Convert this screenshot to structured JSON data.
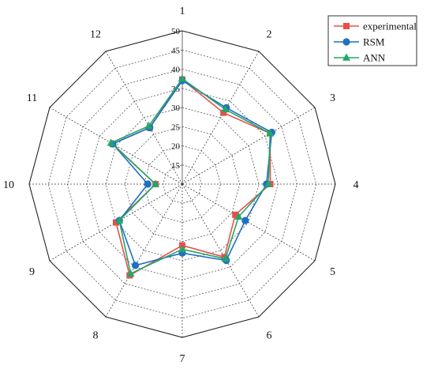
{
  "chart_data": {
    "type": "radar",
    "categories": [
      "1",
      "2",
      "3",
      "4",
      "5",
      "6",
      "7",
      "8",
      "9",
      "10",
      "11",
      "12"
    ],
    "r_ticks": [
      15,
      20,
      25,
      30,
      35,
      40,
      45,
      50
    ],
    "r_range": [
      10,
      50
    ],
    "grid": true,
    "legend_position": "top-right",
    "series": [
      {
        "name": "experimental",
        "color": "#e8504a",
        "marker": "square",
        "values": [
          37.3,
          31.5,
          36.5,
          33.0,
          26.0,
          32.0,
          26.0,
          37.5,
          30.0,
          17.0,
          31.0,
          27.0
        ]
      },
      {
        "name": "RSM",
        "color": "#1f6fc5",
        "marker": "circle",
        "values": [
          37.0,
          33.0,
          37.0,
          32.0,
          29.0,
          33.0,
          28.0,
          34.5,
          29.0,
          19.0,
          31.0,
          27.0
        ]
      },
      {
        "name": "ANN",
        "color": "#23a66a",
        "marker": "triangle",
        "values": [
          37.5,
          32.5,
          36.5,
          32.5,
          27.0,
          32.5,
          27.0,
          37.0,
          29.0,
          17.0,
          31.5,
          27.5
        ]
      }
    ]
  }
}
